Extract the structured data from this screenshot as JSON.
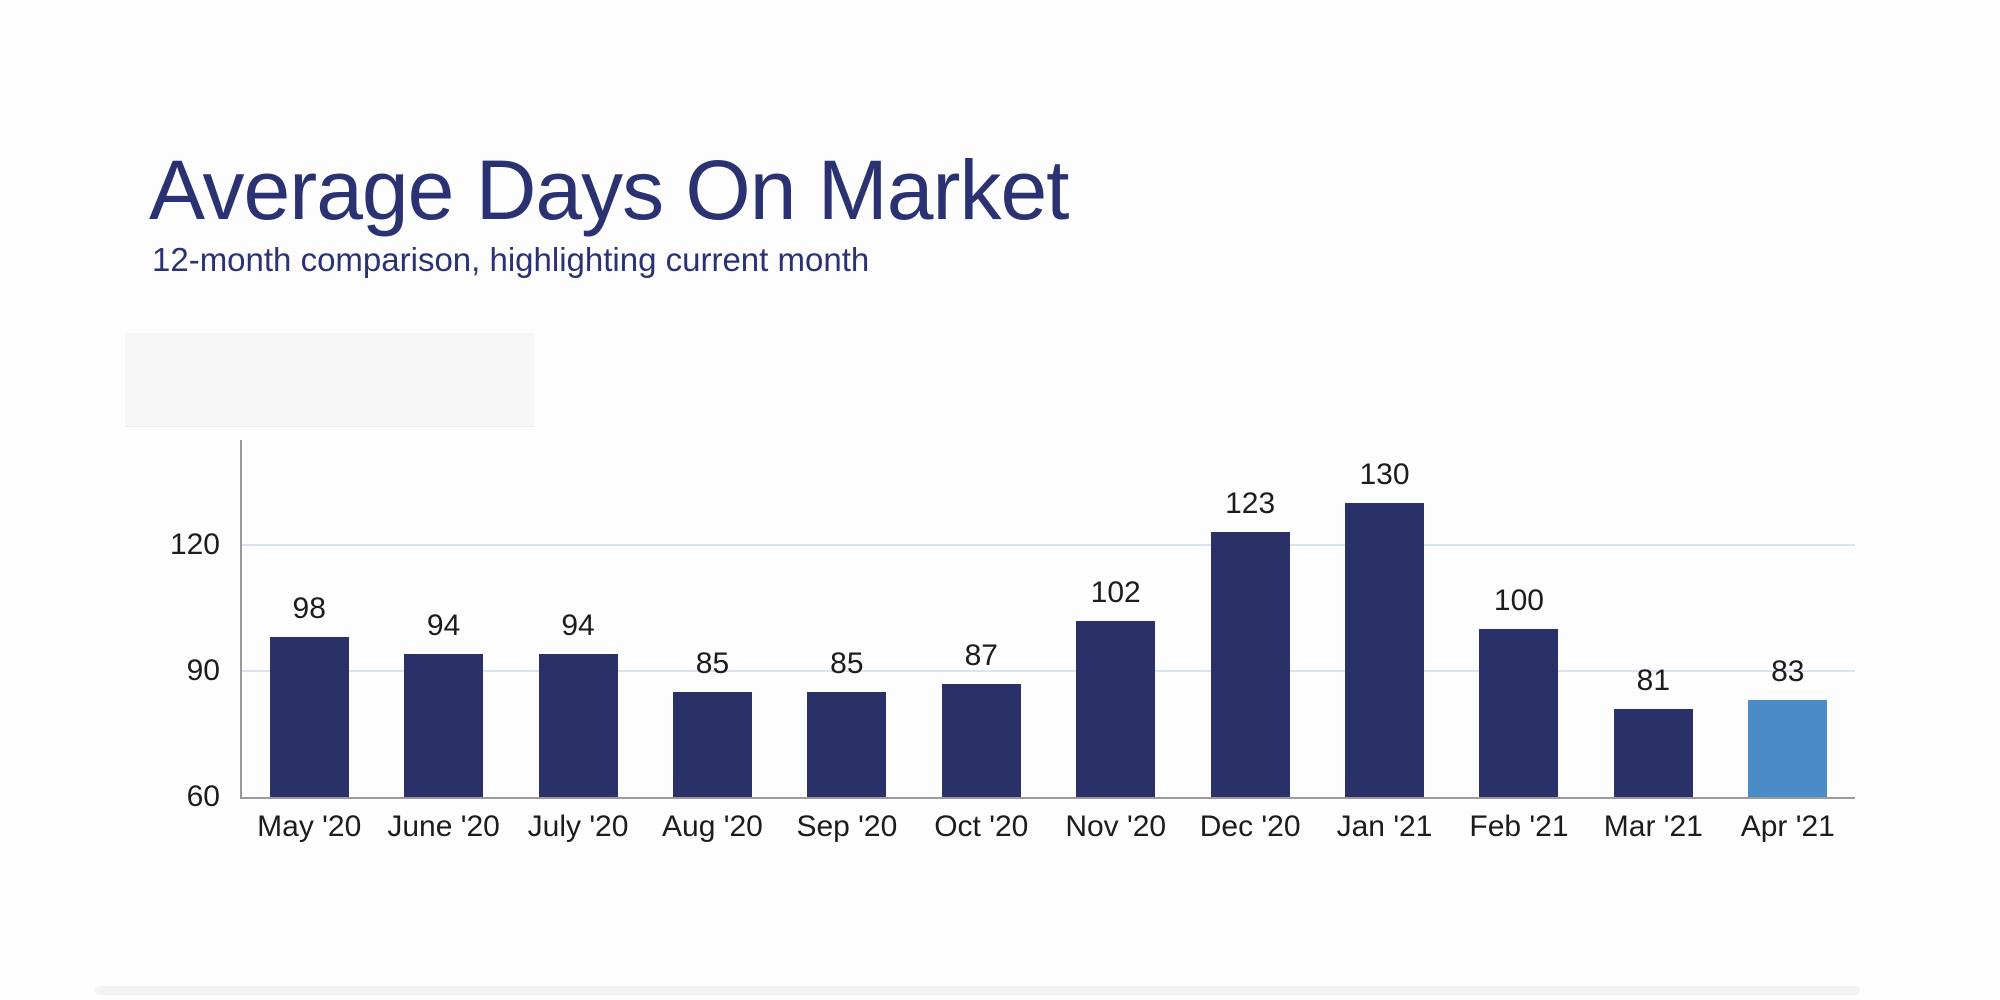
{
  "header": {
    "title": "Average Days On Market",
    "subtitle": "12-month comparison, highlighting current month",
    "title_color": "#2B3272"
  },
  "chart_data": {
    "type": "bar",
    "title": "Average Days On Market",
    "subtitle": "12-month comparison, highlighting current month",
    "categories": [
      "May '20",
      "June '20",
      "July '20",
      "Aug '20",
      "Sep '20",
      "Oct '20",
      "Nov '20",
      "Dec '20",
      "Jan '21",
      "Feb '21",
      "Mar '21",
      "Apr '21"
    ],
    "values": [
      98,
      94,
      94,
      85,
      85,
      87,
      102,
      123,
      130,
      100,
      81,
      83
    ],
    "highlighted_index": 11,
    "highlighted_category": "Apr '21",
    "xlabel": "",
    "ylabel": "",
    "y_ticks": [
      60,
      90,
      120
    ],
    "ylim": [
      60,
      145
    ],
    "grid": "horizontal",
    "legend": "none",
    "colors": {
      "bar": "#2A3068",
      "highlight": "#4A8CC7",
      "gridline": "#DCE3F0",
      "axis": "#9A9A9A",
      "label": "#1C1C1C",
      "title": "#2B3272"
    }
  }
}
